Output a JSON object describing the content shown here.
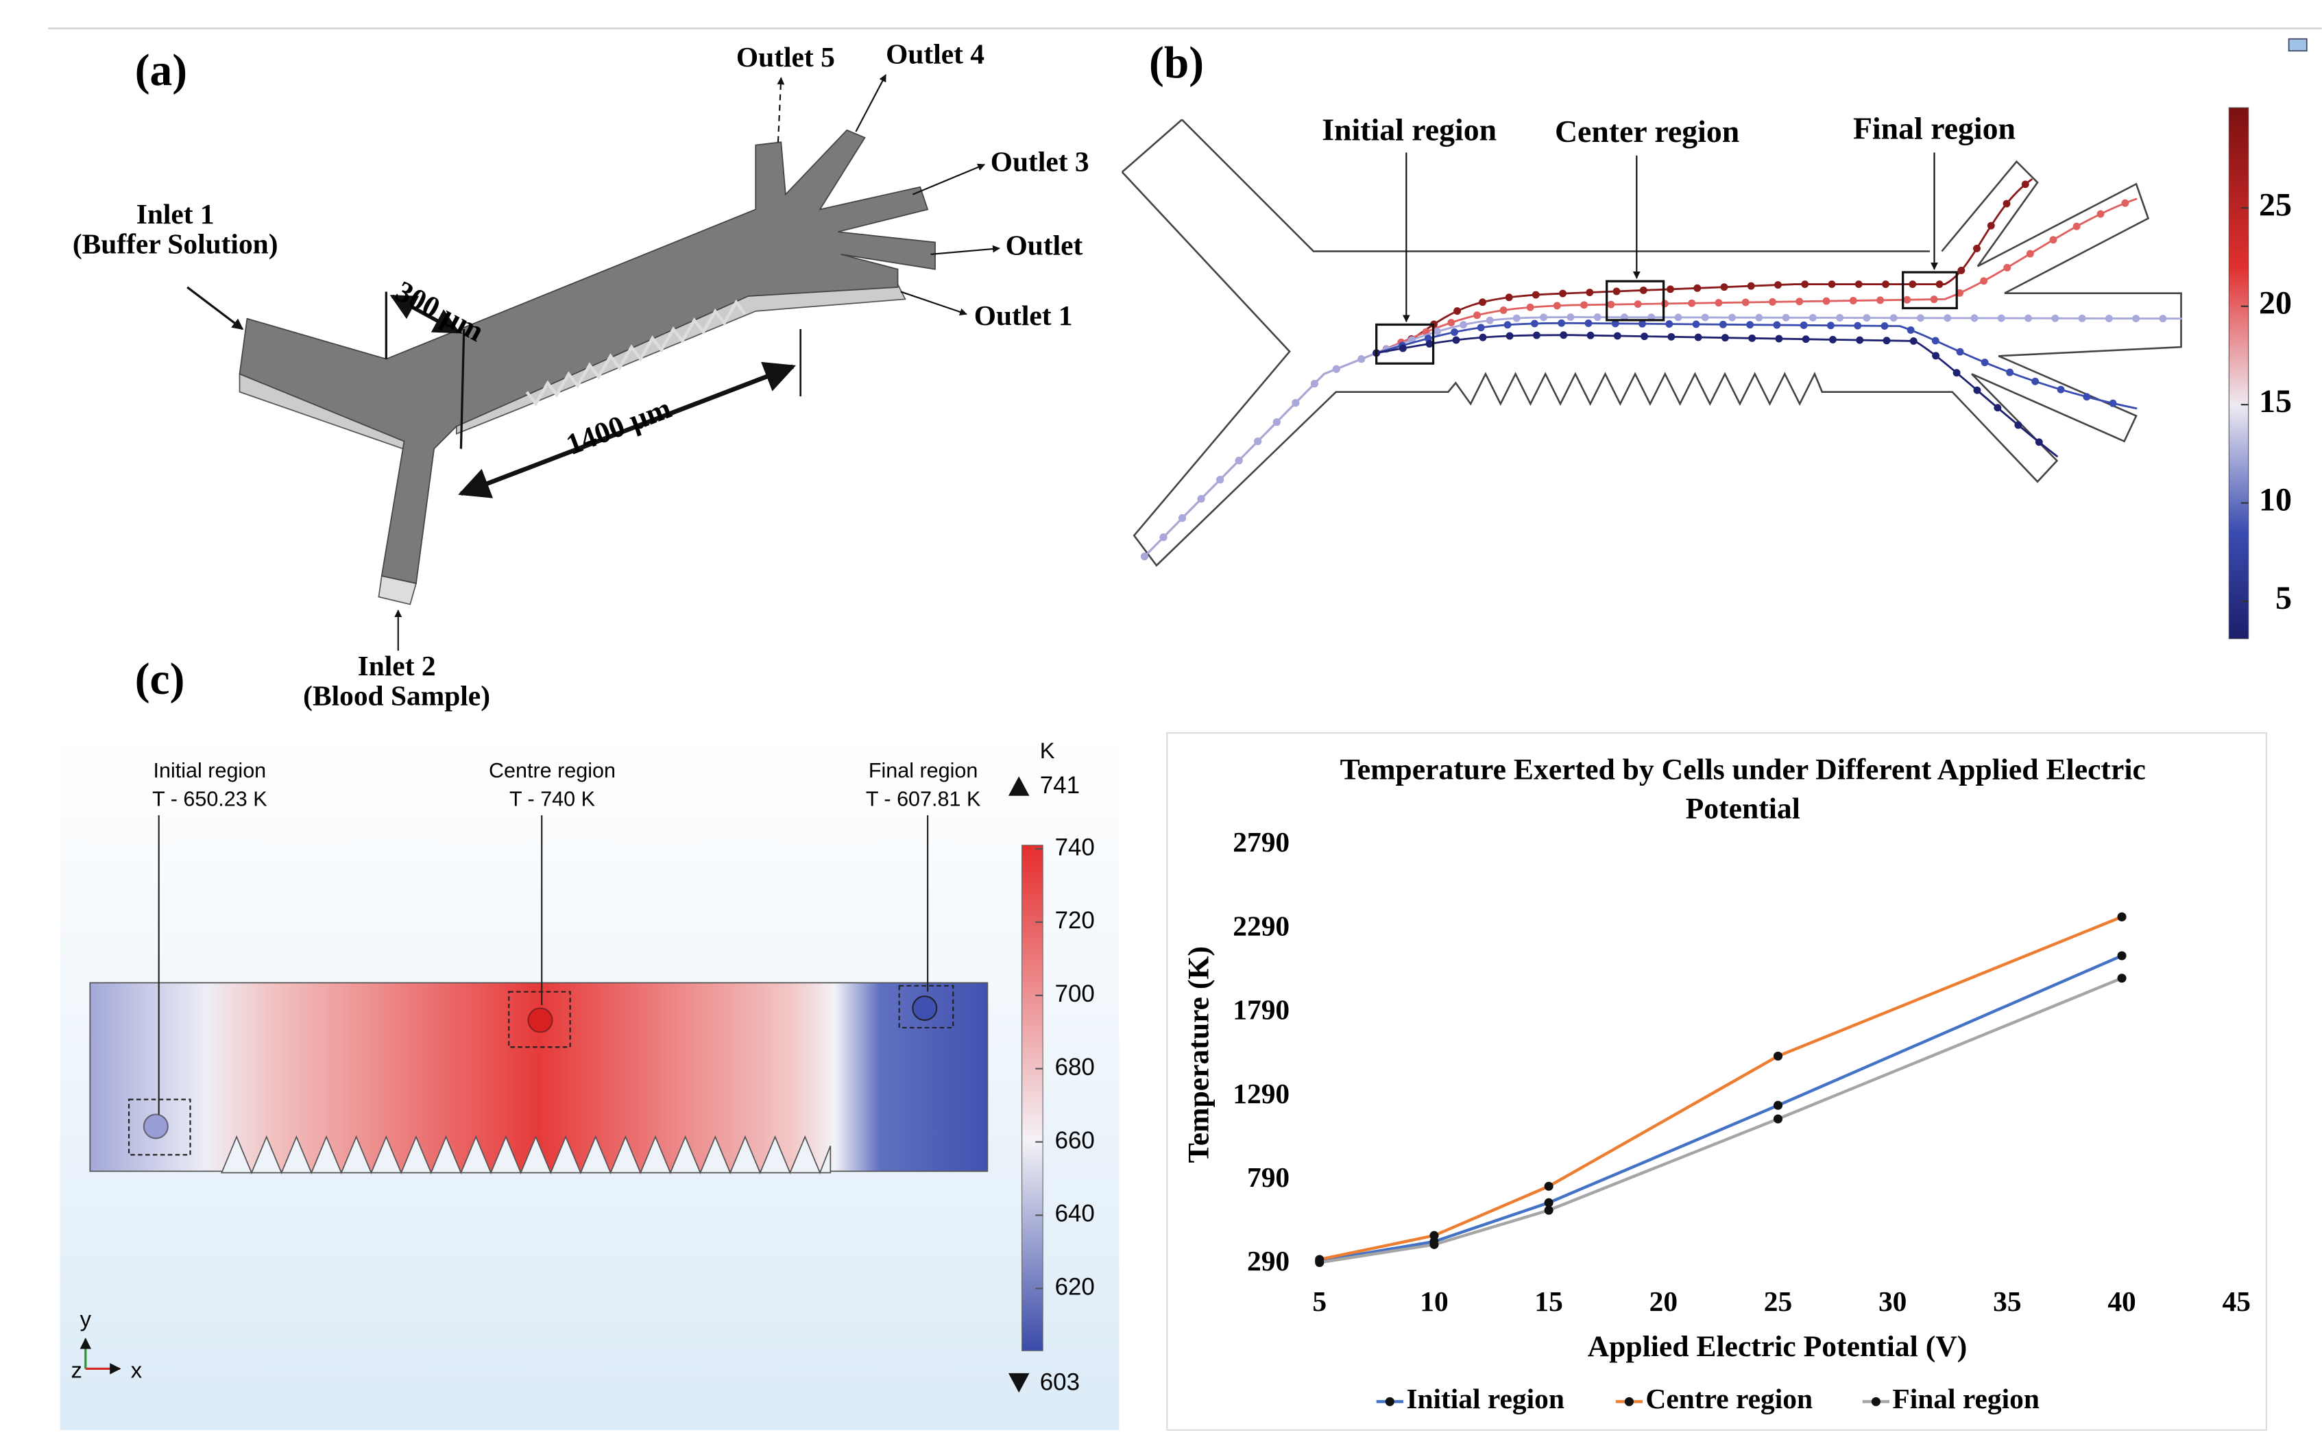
{
  "panels": {
    "a": {
      "label": "(a)",
      "outlets": [
        "Outlet 5",
        "Outlet 4",
        "Outlet 3",
        "Outlet",
        "Outlet 1"
      ],
      "inlet1": [
        "Inlet 1",
        "(Buffer Solution)"
      ],
      "inlet2": [
        "Inlet 2",
        "(Blood Sample)"
      ],
      "width_label": "300 µm",
      "length_label": "1400 µm"
    },
    "b": {
      "label": "(b)",
      "regions": [
        "Initial region",
        "Center region",
        "Final region"
      ],
      "colorbar_ticks": [
        5,
        10,
        15,
        20,
        25
      ]
    },
    "c": {
      "label": "(c)",
      "regions": [
        {
          "name": "Initial region",
          "temperature": "T -  650.23 K"
        },
        {
          "name": "Centre region",
          "temperature": "T -  740 K"
        },
        {
          "name": "Final region",
          "temperature": "T -  607.81 K"
        }
      ],
      "colorbar_unit": "K",
      "colorbar_max": 741,
      "colorbar_min": 603,
      "colorbar_ticks": [
        740,
        720,
        700,
        680,
        660,
        640,
        620
      ],
      "axes": [
        "y",
        "z",
        "x"
      ]
    }
  },
  "chart_data": {
    "type": "line",
    "title": "Temperature Exerted by Cells under Different Applied Electric Potential",
    "x_label": "Applied Electric Potential (V)",
    "y_label": "Temperature (K)",
    "x": [
      5,
      10,
      15,
      25,
      40
    ],
    "series": [
      {
        "name": "Initial region",
        "color": "#4472c4",
        "values": [
          308,
          424,
          656,
          1237,
          2130
        ]
      },
      {
        "name": "Centre region",
        "color": "#ed7d31",
        "values": [
          317,
          460,
          754,
          1531,
          2362
        ]
      },
      {
        "name": "Final region",
        "color": "#a5a5a5",
        "values": [
          299,
          406,
          611,
          1156,
          1996
        ]
      }
    ],
    "xlim": [
      5,
      45
    ],
    "xticks": [
      5,
      10,
      15,
      20,
      25,
      30,
      35,
      40,
      45
    ],
    "ylim": [
      290,
      2790
    ],
    "yticks": [
      290,
      790,
      1290,
      1790,
      2290,
      2790
    ],
    "grid": false,
    "legend": "bottom"
  }
}
